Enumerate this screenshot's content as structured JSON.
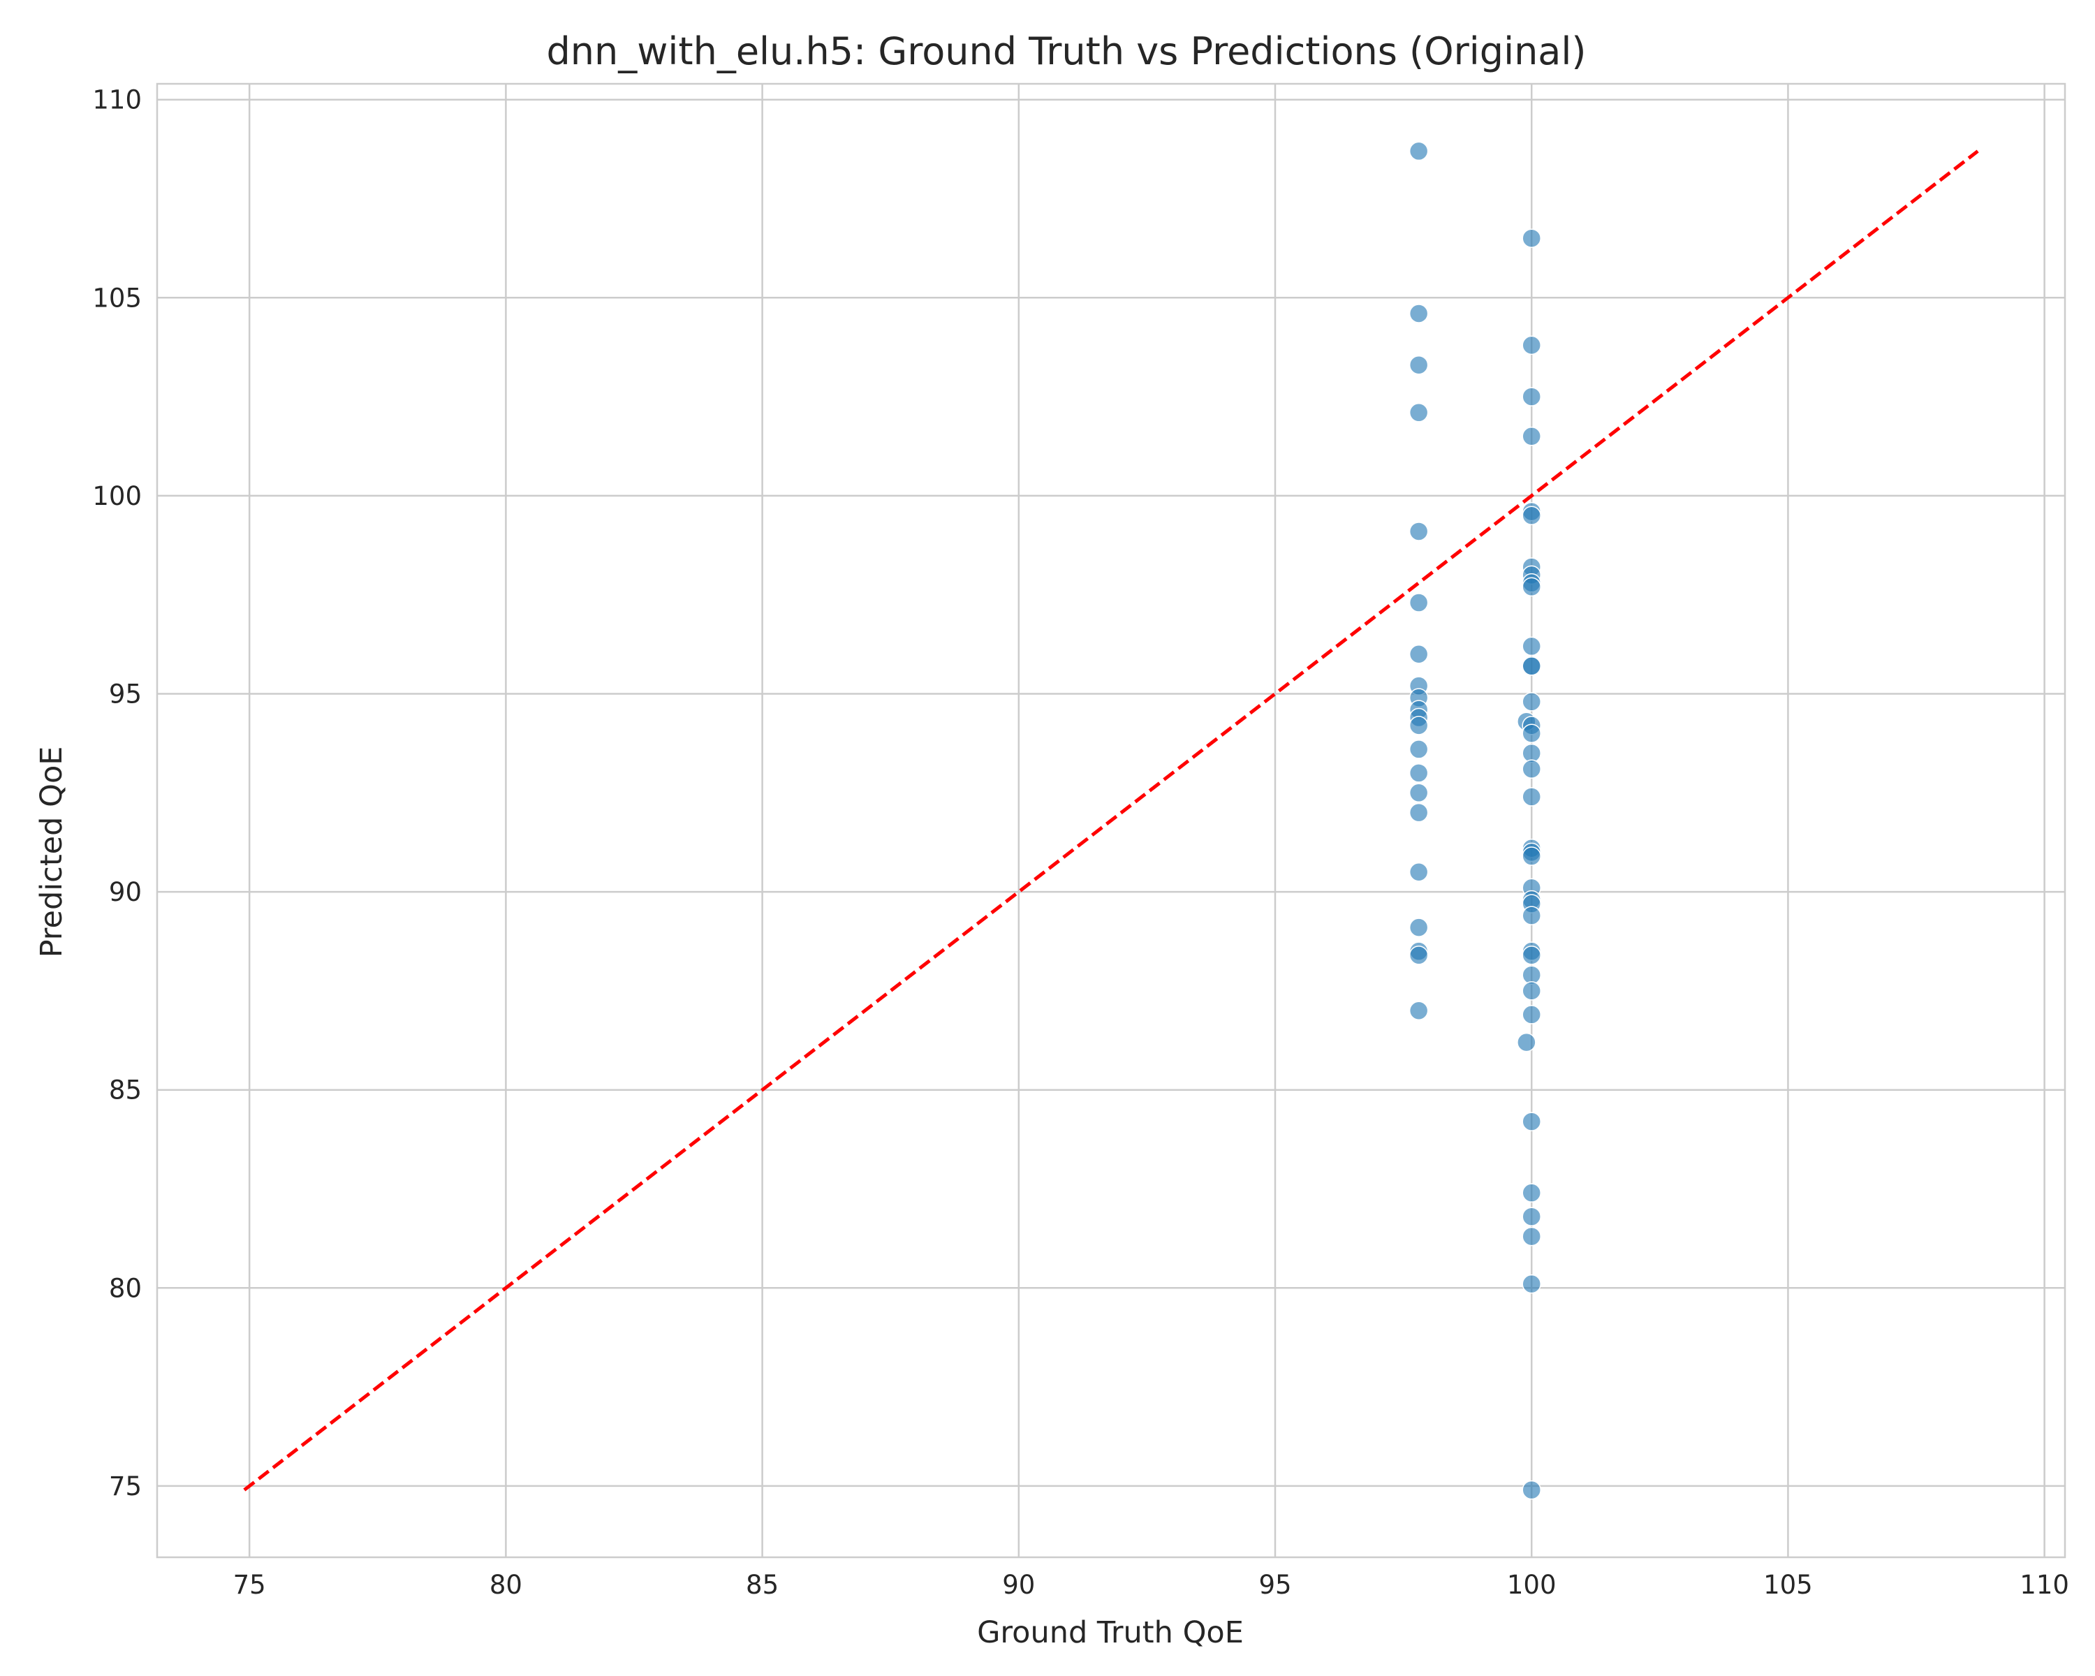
{
  "chart_data": {
    "type": "scatter",
    "title": "dnn_with_elu.h5: Ground Truth vs Predictions (Original)",
    "xlabel": "Ground Truth QoE",
    "ylabel": "Predicted QoE",
    "xlim": [
      73.2,
      110.4
    ],
    "ylim": [
      73.2,
      110.4
    ],
    "xticks": [
      75,
      80,
      85,
      90,
      95,
      100,
      105,
      110
    ],
    "yticks": [
      75,
      80,
      85,
      90,
      95,
      100,
      105,
      110
    ],
    "grid": true,
    "series_color": "#1f77b4",
    "reference_line": {
      "x": [
        74.9,
        108.7
      ],
      "y": [
        74.9,
        108.7
      ],
      "color": "#ff0000",
      "style": "dashed"
    },
    "points": [
      [
        97.8,
        108.7
      ],
      [
        97.8,
        104.6
      ],
      [
        97.8,
        103.3
      ],
      [
        97.8,
        102.1
      ],
      [
        97.8,
        99.1
      ],
      [
        97.8,
        97.3
      ],
      [
        97.8,
        96.0
      ],
      [
        97.8,
        95.2
      ],
      [
        97.8,
        94.9
      ],
      [
        97.8,
        94.6
      ],
      [
        97.8,
        94.4
      ],
      [
        97.8,
        94.2
      ],
      [
        97.8,
        93.6
      ],
      [
        97.8,
        93.0
      ],
      [
        97.8,
        92.5
      ],
      [
        97.8,
        92.0
      ],
      [
        97.8,
        90.5
      ],
      [
        97.8,
        89.1
      ],
      [
        97.8,
        88.5
      ],
      [
        97.8,
        88.4
      ],
      [
        97.8,
        87.0
      ],
      [
        100.0,
        106.5
      ],
      [
        100.0,
        103.8
      ],
      [
        100.0,
        102.5
      ],
      [
        100.0,
        101.5
      ],
      [
        100.0,
        99.6
      ],
      [
        100.0,
        99.5
      ],
      [
        100.0,
        98.2
      ],
      [
        100.0,
        98.0
      ],
      [
        100.0,
        97.8
      ],
      [
        100.0,
        97.7
      ],
      [
        100.0,
        96.2
      ],
      [
        100.0,
        95.7
      ],
      [
        100.0,
        95.7
      ],
      [
        100.0,
        94.8
      ],
      [
        99.9,
        94.3
      ],
      [
        100.0,
        94.2
      ],
      [
        100.0,
        94.0
      ],
      [
        100.0,
        93.5
      ],
      [
        100.0,
        93.1
      ],
      [
        100.0,
        92.4
      ],
      [
        100.0,
        91.1
      ],
      [
        100.0,
        91.0
      ],
      [
        100.0,
        90.9
      ],
      [
        100.0,
        90.1
      ],
      [
        100.0,
        89.8
      ],
      [
        100.0,
        89.7
      ],
      [
        100.0,
        89.4
      ],
      [
        100.0,
        88.5
      ],
      [
        100.0,
        88.4
      ],
      [
        100.0,
        87.9
      ],
      [
        100.0,
        87.5
      ],
      [
        100.0,
        86.9
      ],
      [
        99.9,
        86.2
      ],
      [
        100.0,
        84.2
      ],
      [
        100.0,
        82.4
      ],
      [
        100.0,
        81.8
      ],
      [
        100.0,
        81.3
      ],
      [
        100.0,
        80.1
      ],
      [
        100.0,
        74.9
      ]
    ]
  }
}
